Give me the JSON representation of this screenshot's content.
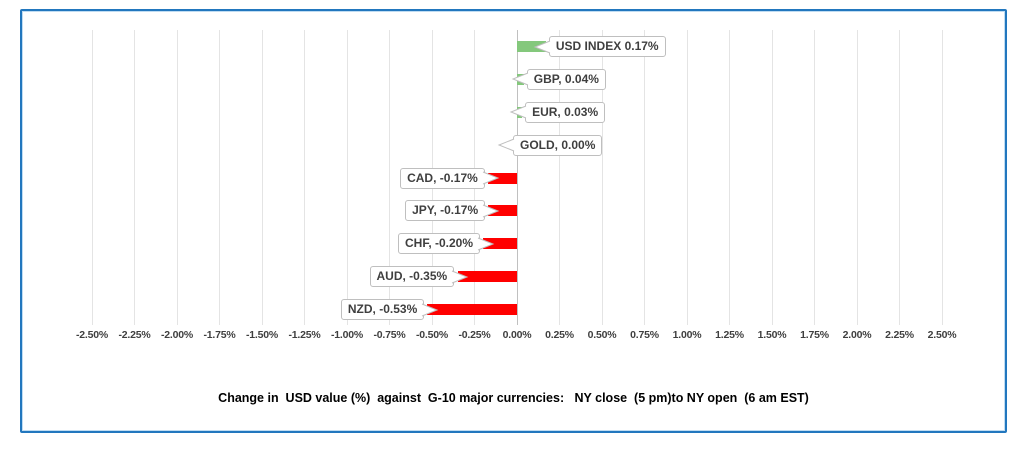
{
  "chart_data": {
    "type": "bar",
    "orientation": "horizontal",
    "title": "Change in  USD value (%)  against  G-10 major currencies:   NY close  (5 pm)to NY open  (6 am EST)",
    "categories": [
      "USD INDEX",
      "GBP",
      "EUR",
      "GOLD",
      "CAD",
      "JPY",
      "CHF",
      "AUD",
      "NZD"
    ],
    "values": [
      0.17,
      0.04,
      0.03,
      0.0,
      -0.17,
      -0.17,
      -0.2,
      -0.35,
      -0.53
    ],
    "data_labels": [
      "USD INDEX 0.17%",
      "GBP, 0.04%",
      "EUR, 0.03%",
      "GOLD, 0.00%",
      "CAD, -0.17%",
      "JPY, -0.17%",
      "CHF, -0.20%",
      "AUD, -0.35%",
      "NZD, -0.53%"
    ],
    "x_ticks": [
      "-2.50%",
      "-2.25%",
      "-2.00%",
      "-1.75%",
      "-1.50%",
      "-1.25%",
      "-1.00%",
      "-0.75%",
      "-0.50%",
      "-0.25%",
      "0.00%",
      "0.25%",
      "0.50%",
      "0.75%",
      "1.00%",
      "1.25%",
      "1.50%",
      "1.75%",
      "2.00%",
      "2.25%",
      "2.50%"
    ],
    "xlim": [
      -2.5,
      2.5
    ],
    "grid": true,
    "legend": "none",
    "colors": {
      "positive_bar": "#84C87C",
      "negative_bar": "#FF0000",
      "gridline": "#E4E4E4",
      "zero_line": "#C0C0C0",
      "label_border": "#BFBFBF",
      "label_text": "#3F3F3F",
      "axis_text": "#3F3F3F",
      "frame_border": "#2277BE",
      "title_text": "#000000"
    }
  }
}
